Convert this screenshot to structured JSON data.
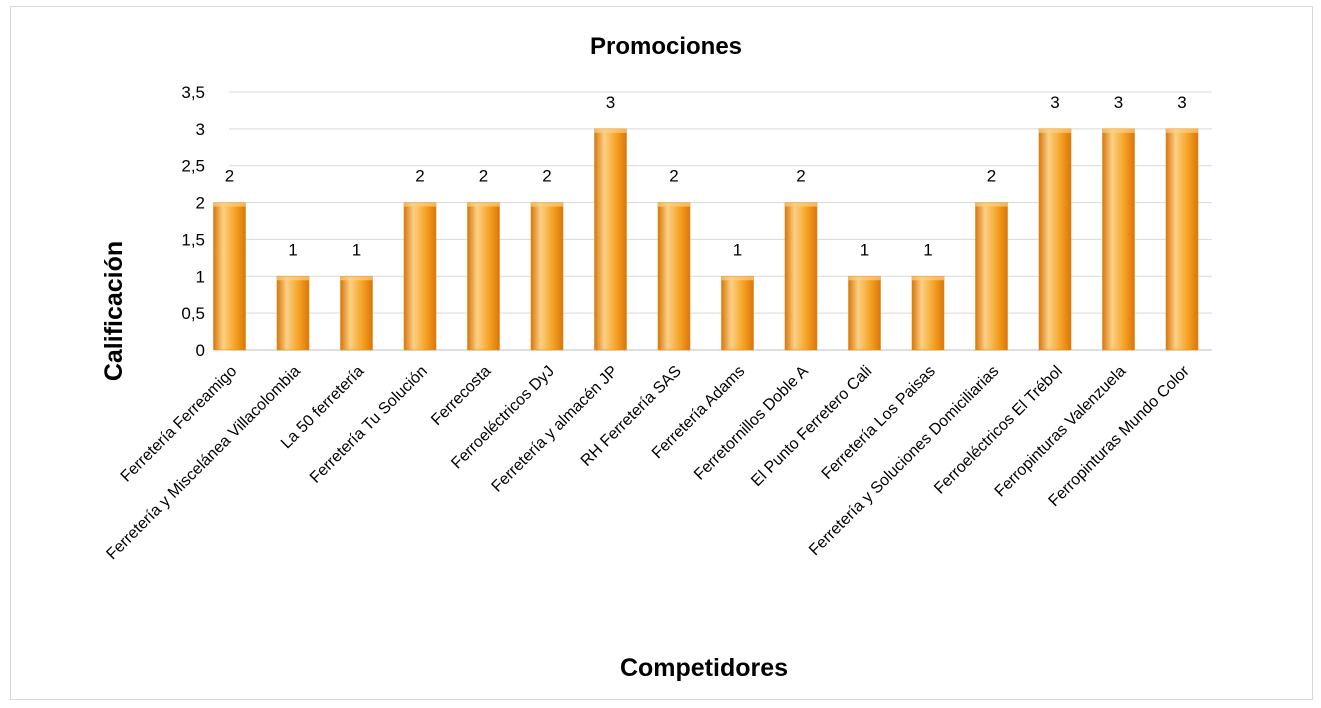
{
  "chart_data": {
    "type": "bar",
    "title": "Promociones",
    "xlabel": "Competidores",
    "ylabel": "Calificación",
    "ylim": [
      0,
      3.5
    ],
    "ytick_step": 0.5,
    "ytick_labels": [
      "0",
      "0,5",
      "1",
      "1,5",
      "2",
      "2,5",
      "3",
      "3,5"
    ],
    "grid": true,
    "legend": "none",
    "bar_color": "#f5a020",
    "bar_color_light": "#fbd085",
    "bar_color_dark": "#d9760c",
    "categories": [
      "Ferretería Ferreamigo",
      "Ferretería y Miscelánea Villacolombia",
      "La 50 ferretería",
      "Ferretería Tu Solución",
      "Ferrecosta",
      "Ferroeléctricos DyJ",
      "Ferretería y almacén JP",
      "RH Ferretería SAS",
      "Ferretería Adams",
      "Ferretornillos Doble A",
      "El Punto Ferretero Cali",
      "Ferretería Los Paisas",
      "Ferretería y Soluciones Domiciliarias",
      "Ferroeléctricos El Trébol",
      "Ferropinturas Valenzuela",
      "Ferropinturas Mundo Color"
    ],
    "values": [
      2,
      1,
      1,
      2,
      2,
      2,
      3,
      2,
      1,
      2,
      1,
      1,
      2,
      3,
      3,
      3
    ],
    "data_labels": [
      "2",
      "1",
      "1",
      "2",
      "2",
      "2",
      "3",
      "2",
      "1",
      "2",
      "1",
      "1",
      "2",
      "3",
      "3",
      "3"
    ]
  }
}
